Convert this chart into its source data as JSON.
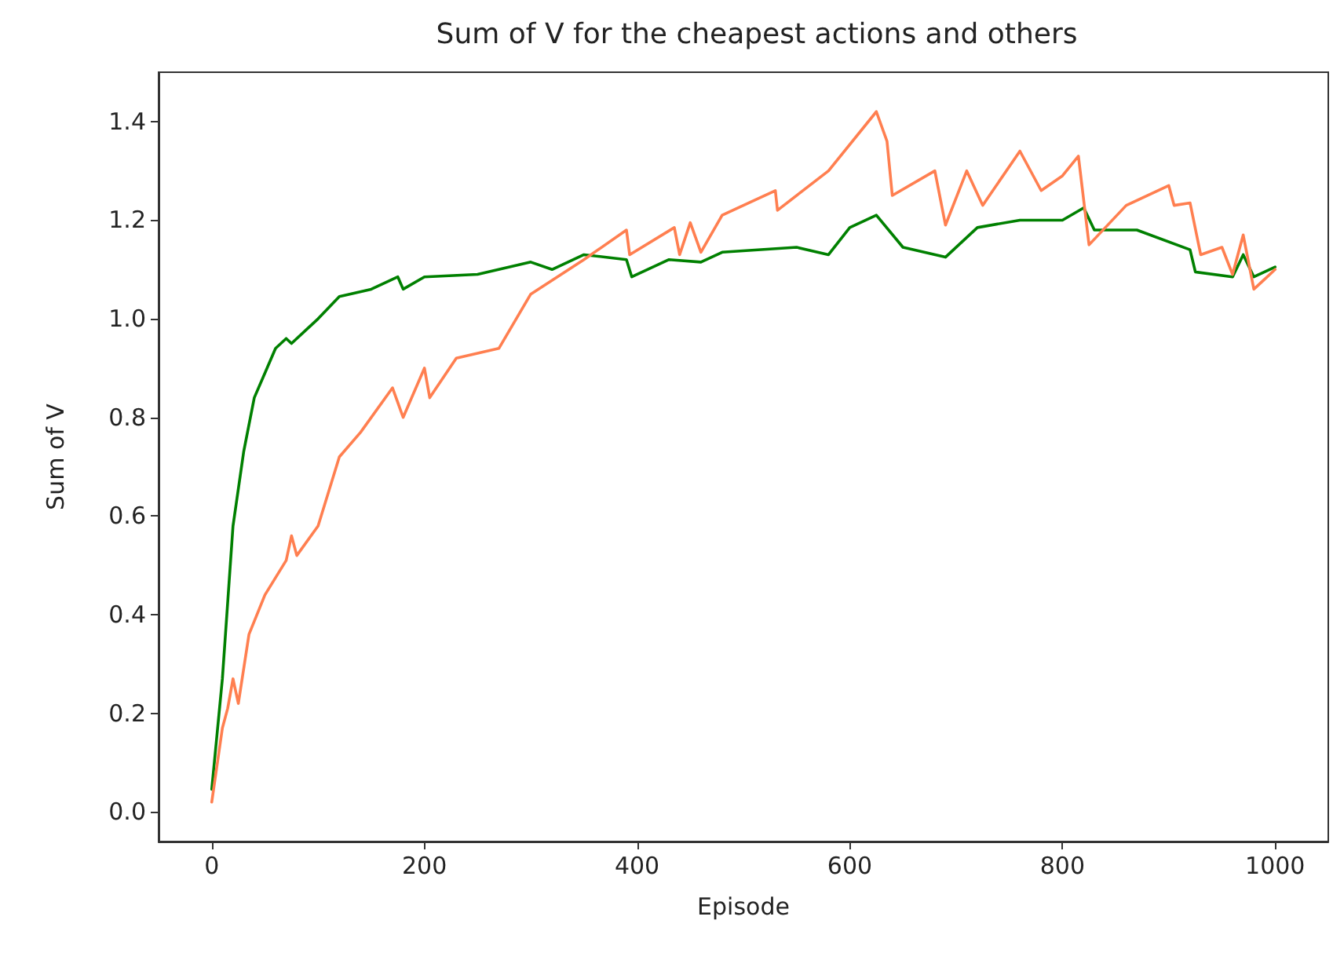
{
  "chart_data": {
    "type": "line",
    "title": "Sum of V for the cheapest actions and others",
    "xlabel": "Episode",
    "ylabel": "Sum of V",
    "xlim": [
      -50,
      1050
    ],
    "xticks": [
      0,
      200,
      400,
      600,
      800,
      1000
    ],
    "ylim": [
      -0.06,
      1.5
    ],
    "yticks": [
      {
        "value": 0,
        "label": "0.0"
      },
      0.2,
      0.4,
      0.6,
      0.8,
      {
        "value": 1,
        "label": "1.0"
      },
      1.2,
      1.4
    ],
    "grid": false,
    "marker": "none",
    "line_style": "solid",
    "series": [
      {
        "color": "#008000",
        "x": [
          0,
          10,
          20,
          30,
          40,
          50,
          60,
          70,
          75,
          90,
          100,
          120,
          150,
          175,
          180,
          200,
          250,
          300,
          320,
          350,
          390,
          395,
          430,
          460,
          480,
          550,
          580,
          600,
          625,
          650,
          690,
          720,
          760,
          800,
          820,
          830,
          870,
          920,
          925,
          960,
          970,
          980,
          1000
        ],
        "values": [
          0.046,
          0.27,
          0.58,
          0.73,
          0.84,
          0.89,
          0.94,
          0.96,
          0.95,
          0.98,
          1.0,
          1.045,
          1.06,
          1.085,
          1.06,
          1.085,
          1.09,
          1.115,
          1.1,
          1.13,
          1.12,
          1.085,
          1.12,
          1.115,
          1.135,
          1.145,
          1.13,
          1.185,
          1.21,
          1.145,
          1.125,
          1.185,
          1.2,
          1.2,
          1.225,
          1.18,
          1.18,
          1.14,
          1.095,
          1.085,
          1.13,
          1.085,
          1.105
        ]
      },
      {
        "color": "#ff7f50",
        "x": [
          0,
          10,
          15,
          20,
          25,
          35,
          50,
          70,
          75,
          80,
          100,
          120,
          140,
          170,
          180,
          200,
          205,
          230,
          270,
          300,
          350,
          390,
          393,
          435,
          440,
          450,
          460,
          480,
          530,
          532,
          580,
          625,
          635,
          640,
          680,
          690,
          710,
          725,
          760,
          780,
          800,
          815,
          825,
          860,
          900,
          905,
          920,
          930,
          950,
          960,
          970,
          980,
          990,
          1000
        ],
        "values": [
          0.02,
          0.17,
          0.21,
          0.27,
          0.22,
          0.36,
          0.44,
          0.51,
          0.56,
          0.52,
          0.58,
          0.72,
          0.77,
          0.86,
          0.8,
          0.9,
          0.84,
          0.92,
          0.94,
          1.05,
          1.12,
          1.18,
          1.13,
          1.185,
          1.13,
          1.195,
          1.135,
          1.21,
          1.26,
          1.22,
          1.3,
          1.42,
          1.36,
          1.25,
          1.3,
          1.19,
          1.3,
          1.23,
          1.34,
          1.26,
          1.29,
          1.33,
          1.15,
          1.23,
          1.27,
          1.23,
          1.235,
          1.13,
          1.145,
          1.09,
          1.17,
          1.06,
          1.08,
          1.1
        ]
      }
    ]
  }
}
